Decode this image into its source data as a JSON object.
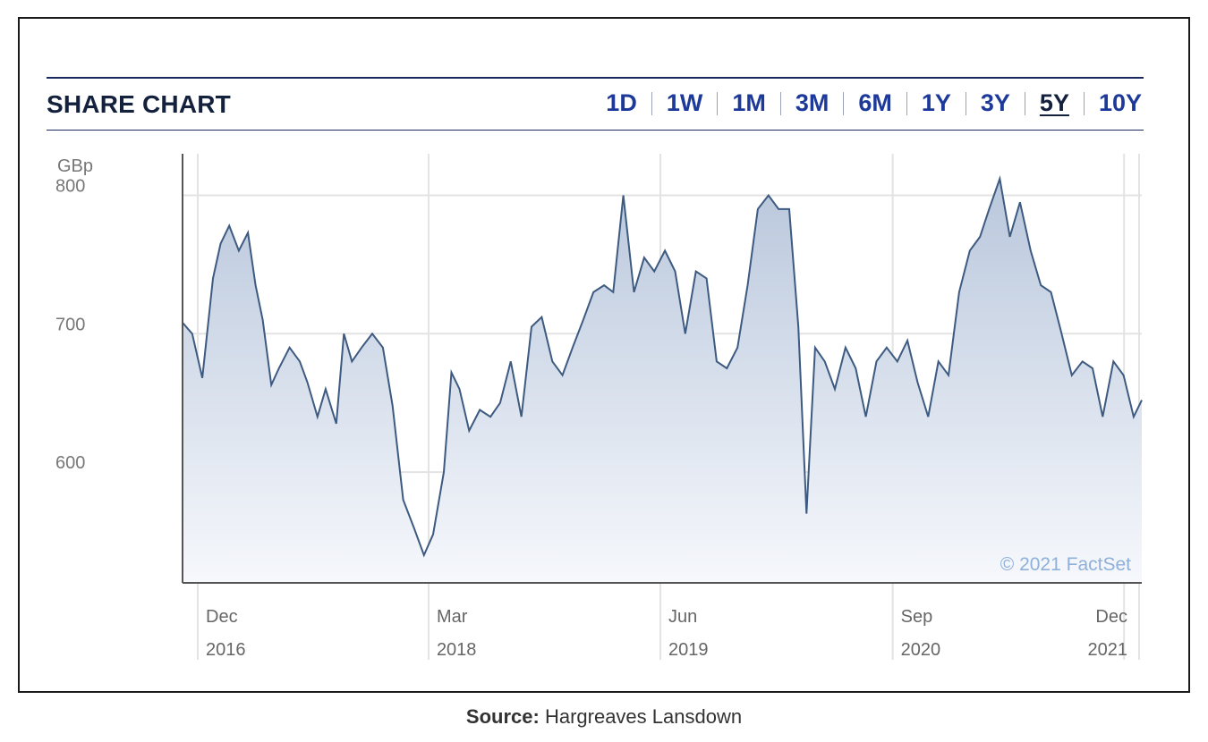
{
  "header": {
    "title": "SHARE CHART",
    "ranges": [
      "1D",
      "1W",
      "1M",
      "3M",
      "6M",
      "1Y",
      "3Y",
      "5Y",
      "10Y"
    ],
    "active_range": "5Y"
  },
  "chart_data": {
    "type": "area",
    "ylabel": "GBp",
    "ylim": [
      520,
      830
    ],
    "yticks": [
      600,
      700,
      800
    ],
    "xlim": [
      "2016-11-01",
      "2022-01-05"
    ],
    "xticks": [
      {
        "date": "2016-12-01",
        "month": "Dec",
        "year": "2016"
      },
      {
        "date": "2018-03-01",
        "month": "Mar",
        "year": "2018"
      },
      {
        "date": "2019-06-01",
        "month": "Jun",
        "year": "2019"
      },
      {
        "date": "2020-09-01",
        "month": "Sep",
        "year": "2020"
      },
      {
        "date": "2021-12-01",
        "month": "Dec",
        "year": "2021"
      }
    ],
    "grid": true,
    "watermark": "© 2021 FactSet",
    "colors": {
      "line": "#3d5a80",
      "fill_top": "#b9c7dc",
      "fill_bottom": "#f6f8fc",
      "grid": "#e3e3e3"
    },
    "series": [
      {
        "x": [
          "2016-11-01",
          "2016-11-20",
          "2016-12-10",
          "2016-12-31",
          "2017-01-15",
          "2017-02-01",
          "2017-02-20",
          "2017-03-10",
          "2017-03-25",
          "2017-04-08",
          "2017-04-25",
          "2017-05-10",
          "2017-05-31",
          "2017-06-20",
          "2017-07-05",
          "2017-07-25",
          "2017-08-10",
          "2017-08-31",
          "2017-09-15",
          "2017-10-01",
          "2017-10-20",
          "2017-11-10",
          "2017-11-31",
          "2017-12-20",
          "2018-01-10",
          "2018-01-31",
          "2018-02-20",
          "2018-03-10",
          "2018-03-31",
          "2018-04-15",
          "2018-05-01",
          "2018-05-20",
          "2018-06-10",
          "2018-06-31",
          "2018-07-20",
          "2018-08-10",
          "2018-08-31",
          "2018-09-20",
          "2018-10-10",
          "2018-10-31",
          "2018-11-20",
          "2018-12-10",
          "2018-12-31",
          "2019-01-20",
          "2019-02-10",
          "2019-02-28",
          "2019-03-20",
          "2019-04-10",
          "2019-04-30",
          "2019-05-20",
          "2019-06-10",
          "2019-06-30",
          "2019-07-20",
          "2019-08-10",
          "2019-08-31",
          "2019-09-20",
          "2019-10-10",
          "2019-10-31",
          "2019-11-20",
          "2019-12-10",
          "2019-12-31",
          "2020-01-20",
          "2020-02-10",
          "2020-02-28",
          "2020-03-15",
          "2020-04-01",
          "2020-04-20",
          "2020-05-10",
          "2020-05-31",
          "2020-06-20",
          "2020-07-10",
          "2020-07-31",
          "2020-08-20",
          "2020-09-10",
          "2020-09-30",
          "2020-10-20",
          "2020-11-10",
          "2020-11-30",
          "2020-12-20",
          "2021-01-10",
          "2021-01-31",
          "2021-02-20",
          "2021-03-10",
          "2021-03-31",
          "2021-04-20",
          "2021-05-10",
          "2021-05-31",
          "2021-06-20",
          "2021-07-10",
          "2021-07-31",
          "2021-08-20",
          "2021-09-10",
          "2021-09-30",
          "2021-10-20",
          "2021-11-10",
          "2021-11-30",
          "2021-12-20",
          "2022-01-05"
        ],
        "values": [
          708,
          700,
          668,
          740,
          765,
          778,
          760,
          773,
          735,
          710,
          663,
          675,
          690,
          680,
          665,
          640,
          660,
          635,
          700,
          680,
          690,
          700,
          690,
          648,
          580,
          560,
          540,
          555,
          600,
          672,
          660,
          630,
          645,
          640,
          650,
          680,
          640,
          705,
          712,
          680,
          670,
          690,
          710,
          730,
          735,
          730,
          800,
          730,
          755,
          745,
          760,
          745,
          700,
          745,
          740,
          680,
          675,
          690,
          735,
          790,
          800,
          790,
          790,
          705,
          570,
          690,
          680,
          660,
          690,
          675,
          640,
          680,
          690,
          680,
          695,
          665,
          640,
          680,
          670,
          730,
          760,
          770,
          790,
          812,
          770,
          795,
          760,
          735,
          730,
          700,
          670,
          680,
          675,
          640,
          680,
          670,
          640,
          652
        ]
      }
    ]
  },
  "source": {
    "label": "Source:",
    "text": "Hargreaves Lansdown"
  }
}
